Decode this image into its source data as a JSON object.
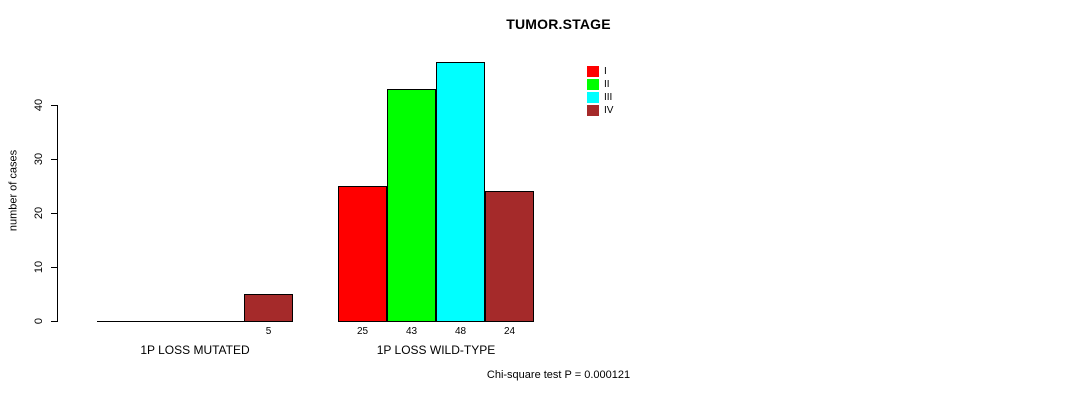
{
  "chart_data": {
    "type": "bar",
    "title": "TUMOR.STAGE",
    "ylabel": "number of cases",
    "yticks": [
      0,
      10,
      20,
      30,
      40
    ],
    "ylim": [
      0,
      48
    ],
    "grid": false,
    "legend_position": "top-right",
    "categories": [
      "1P LOSS MUTATED",
      "1P LOSS WILD-TYPE"
    ],
    "series": [
      {
        "name": "I",
        "color": "#FF0000",
        "values": [
          0,
          25
        ]
      },
      {
        "name": "II",
        "color": "#00FF00",
        "values": [
          0,
          43
        ]
      },
      {
        "name": "III",
        "color": "#00FFFF",
        "values": [
          0,
          48
        ]
      },
      {
        "name": "IV",
        "color": "#A52A2A",
        "values": [
          5,
          24
        ]
      }
    ],
    "bar_value_labels_shown": [
      "5",
      "25",
      "43",
      "48",
      "24"
    ],
    "footer": "Chi-square test P = 0.000121"
  }
}
